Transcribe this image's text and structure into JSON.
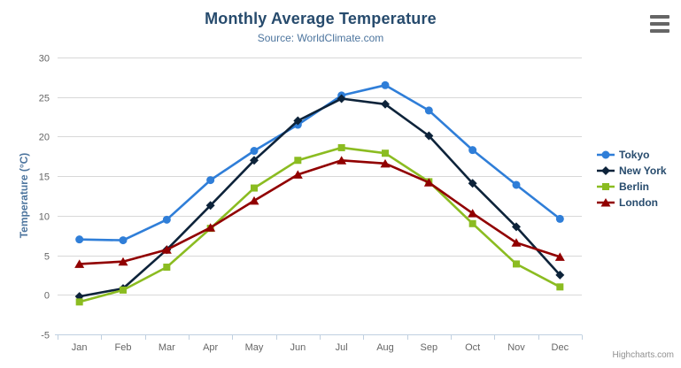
{
  "header": {
    "export_menu_icon": "hamburger-icon"
  },
  "credits": {
    "label": "Highcharts.com"
  },
  "chart_data": {
    "type": "line",
    "title": "Monthly Average Temperature",
    "subtitle": "Source: WorldClimate.com",
    "xlabel": "",
    "ylabel": "Temperature (°C)",
    "ylim": [
      -5,
      30
    ],
    "ytick_step": 5,
    "yticks": [
      -5,
      0,
      5,
      10,
      15,
      20,
      25,
      30
    ],
    "grid": true,
    "legend_position": "right",
    "categories": [
      "Jan",
      "Feb",
      "Mar",
      "Apr",
      "May",
      "Jun",
      "Jul",
      "Aug",
      "Sep",
      "Oct",
      "Nov",
      "Dec"
    ],
    "series": [
      {
        "name": "Tokyo",
        "color": "#2f7ed8",
        "marker": "circle",
        "values": [
          7.0,
          6.9,
          9.5,
          14.5,
          18.2,
          21.5,
          25.2,
          26.5,
          23.3,
          18.3,
          13.9,
          9.6
        ]
      },
      {
        "name": "New York",
        "color": "#0d233a",
        "marker": "diamond",
        "values": [
          -0.2,
          0.8,
          5.7,
          11.3,
          17.0,
          22.0,
          24.8,
          24.1,
          20.1,
          14.1,
          8.6,
          2.5
        ]
      },
      {
        "name": "Berlin",
        "color": "#8bbc21",
        "marker": "square",
        "values": [
          -0.9,
          0.6,
          3.5,
          8.4,
          13.5,
          17.0,
          18.6,
          17.9,
          14.3,
          9.0,
          3.9,
          1.0
        ]
      },
      {
        "name": "London",
        "color": "#910000",
        "marker": "triangle",
        "values": [
          3.9,
          4.2,
          5.7,
          8.5,
          11.9,
          15.2,
          17.0,
          16.6,
          14.2,
          10.3,
          6.6,
          4.8
        ]
      }
    ],
    "colors": {
      "grid_line": "#d8d8d8",
      "axis_line": "#c0d0e0",
      "tick_label": "#666666",
      "title": "#274b6d",
      "subtitle": "#4d759e",
      "axis_title": "#4d759e",
      "legend_text": "#274b6d",
      "credits_text": "#909090"
    }
  }
}
